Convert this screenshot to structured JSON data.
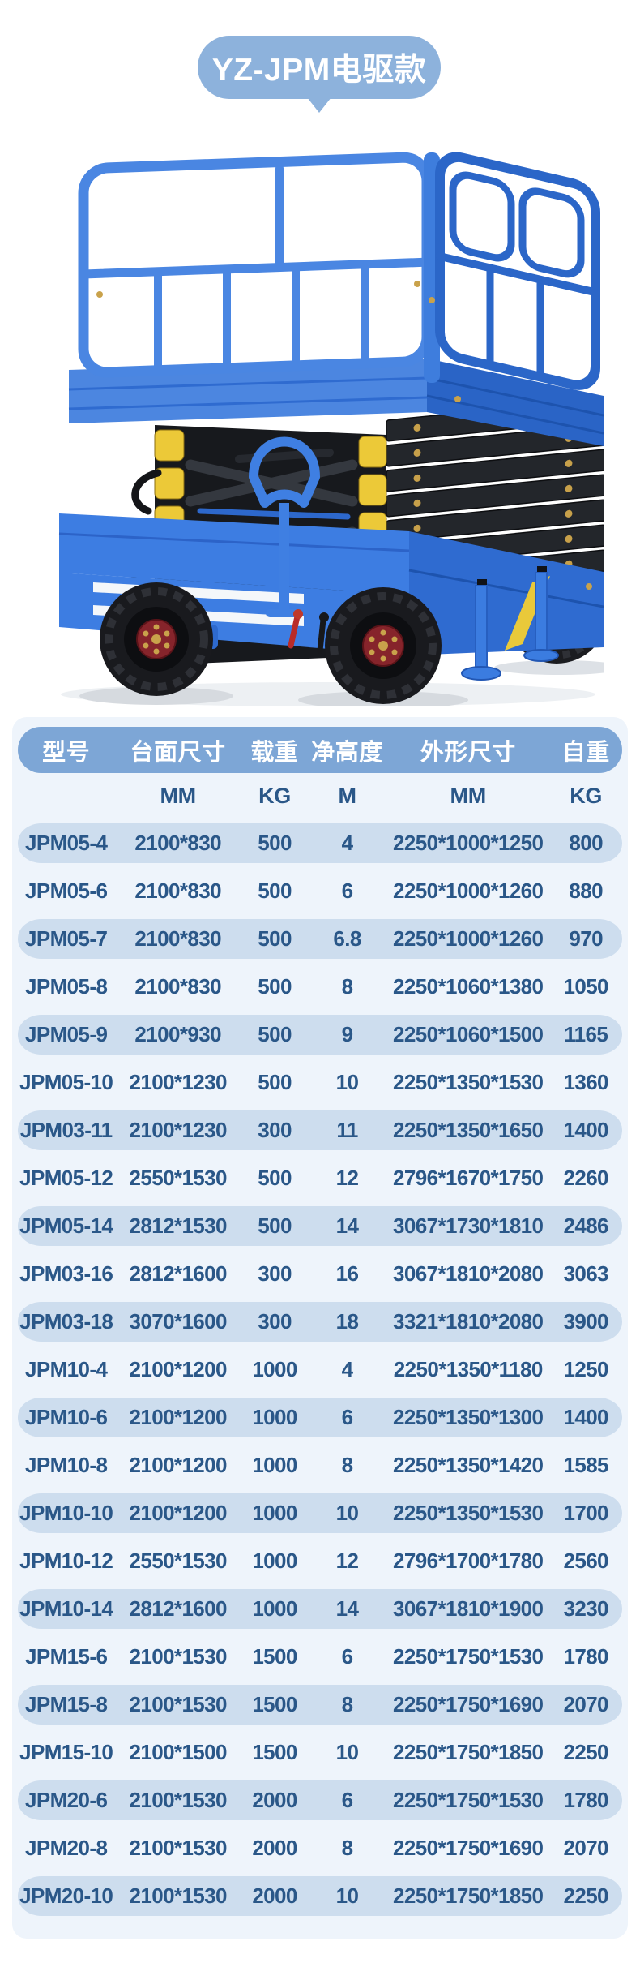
{
  "title": {
    "text": "YZ-JPM电驱款"
  },
  "product": {
    "illustration": "scissor-lift-illustration"
  },
  "colors": {
    "bubble_blue": "#8db2dc",
    "header_blue": "#7da6d6",
    "stripe_blue": "#cdddee",
    "card_bg": "#eef4fb",
    "table_text": "#2a5788",
    "machine_blue": "#3d7de2",
    "machine_dark_blue": "#2a64c6",
    "machine_yellow": "#ecc938",
    "machine_black": "#1b1c20",
    "hub_red": "#86242b",
    "bolt_gold": "#c9a24b"
  },
  "table": {
    "headers": [
      "型号",
      "台面尺寸",
      "载重",
      "净高度",
      "外形尺寸",
      "自重"
    ],
    "units": [
      "",
      "MM",
      "KG",
      "M",
      "MM",
      "KG"
    ],
    "rows": [
      [
        "JPM05-4",
        "2100*830",
        "500",
        "4",
        "2250*1000*1250",
        "800"
      ],
      [
        "JPM05-6",
        "2100*830",
        "500",
        "6",
        "2250*1000*1260",
        "880"
      ],
      [
        "JPM05-7",
        "2100*830",
        "500",
        "6.8",
        "2250*1000*1260",
        "970"
      ],
      [
        "JPM05-8",
        "2100*830",
        "500",
        "8",
        "2250*1060*1380",
        "1050"
      ],
      [
        "JPM05-9",
        "2100*930",
        "500",
        "9",
        "2250*1060*1500",
        "1165"
      ],
      [
        "JPM05-10",
        "2100*1230",
        "500",
        "10",
        "2250*1350*1530",
        "1360"
      ],
      [
        "JPM03-11",
        "2100*1230",
        "300",
        "11",
        "2250*1350*1650",
        "1400"
      ],
      [
        "JPM05-12",
        "2550*1530",
        "500",
        "12",
        "2796*1670*1750",
        "2260"
      ],
      [
        "JPM05-14",
        "2812*1530",
        "500",
        "14",
        "3067*1730*1810",
        "2486"
      ],
      [
        "JPM03-16",
        "2812*1600",
        "300",
        "16",
        "3067*1810*2080",
        "3063"
      ],
      [
        "JPM03-18",
        "3070*1600",
        "300",
        "18",
        "3321*1810*2080",
        "3900"
      ],
      [
        "JPM10-4",
        "2100*1200",
        "1000",
        "4",
        "2250*1350*1180",
        "1250"
      ],
      [
        "JPM10-6",
        "2100*1200",
        "1000",
        "6",
        "2250*1350*1300",
        "1400"
      ],
      [
        "JPM10-8",
        "2100*1200",
        "1000",
        "8",
        "2250*1350*1420",
        "1585"
      ],
      [
        "JPM10-10",
        "2100*1200",
        "1000",
        "10",
        "2250*1350*1530",
        "1700"
      ],
      [
        "JPM10-12",
        "2550*1530",
        "1000",
        "12",
        "2796*1700*1780",
        "2560"
      ],
      [
        "JPM10-14",
        "2812*1600",
        "1000",
        "14",
        "3067*1810*1900",
        "3230"
      ],
      [
        "JPM15-6",
        "2100*1530",
        "1500",
        "6",
        "2250*1750*1530",
        "1780"
      ],
      [
        "JPM15-8",
        "2100*1530",
        "1500",
        "8",
        "2250*1750*1690",
        "2070"
      ],
      [
        "JPM15-10",
        "2100*1500",
        "1500",
        "10",
        "2250*1750*1850",
        "2250"
      ],
      [
        "JPM20-6",
        "2100*1530",
        "2000",
        "6",
        "2250*1750*1530",
        "1780"
      ],
      [
        "JPM20-8",
        "2100*1530",
        "2000",
        "8",
        "2250*1750*1690",
        "2070"
      ],
      [
        "JPM20-10",
        "2100*1530",
        "2000",
        "10",
        "2250*1750*1850",
        "2250"
      ]
    ]
  }
}
